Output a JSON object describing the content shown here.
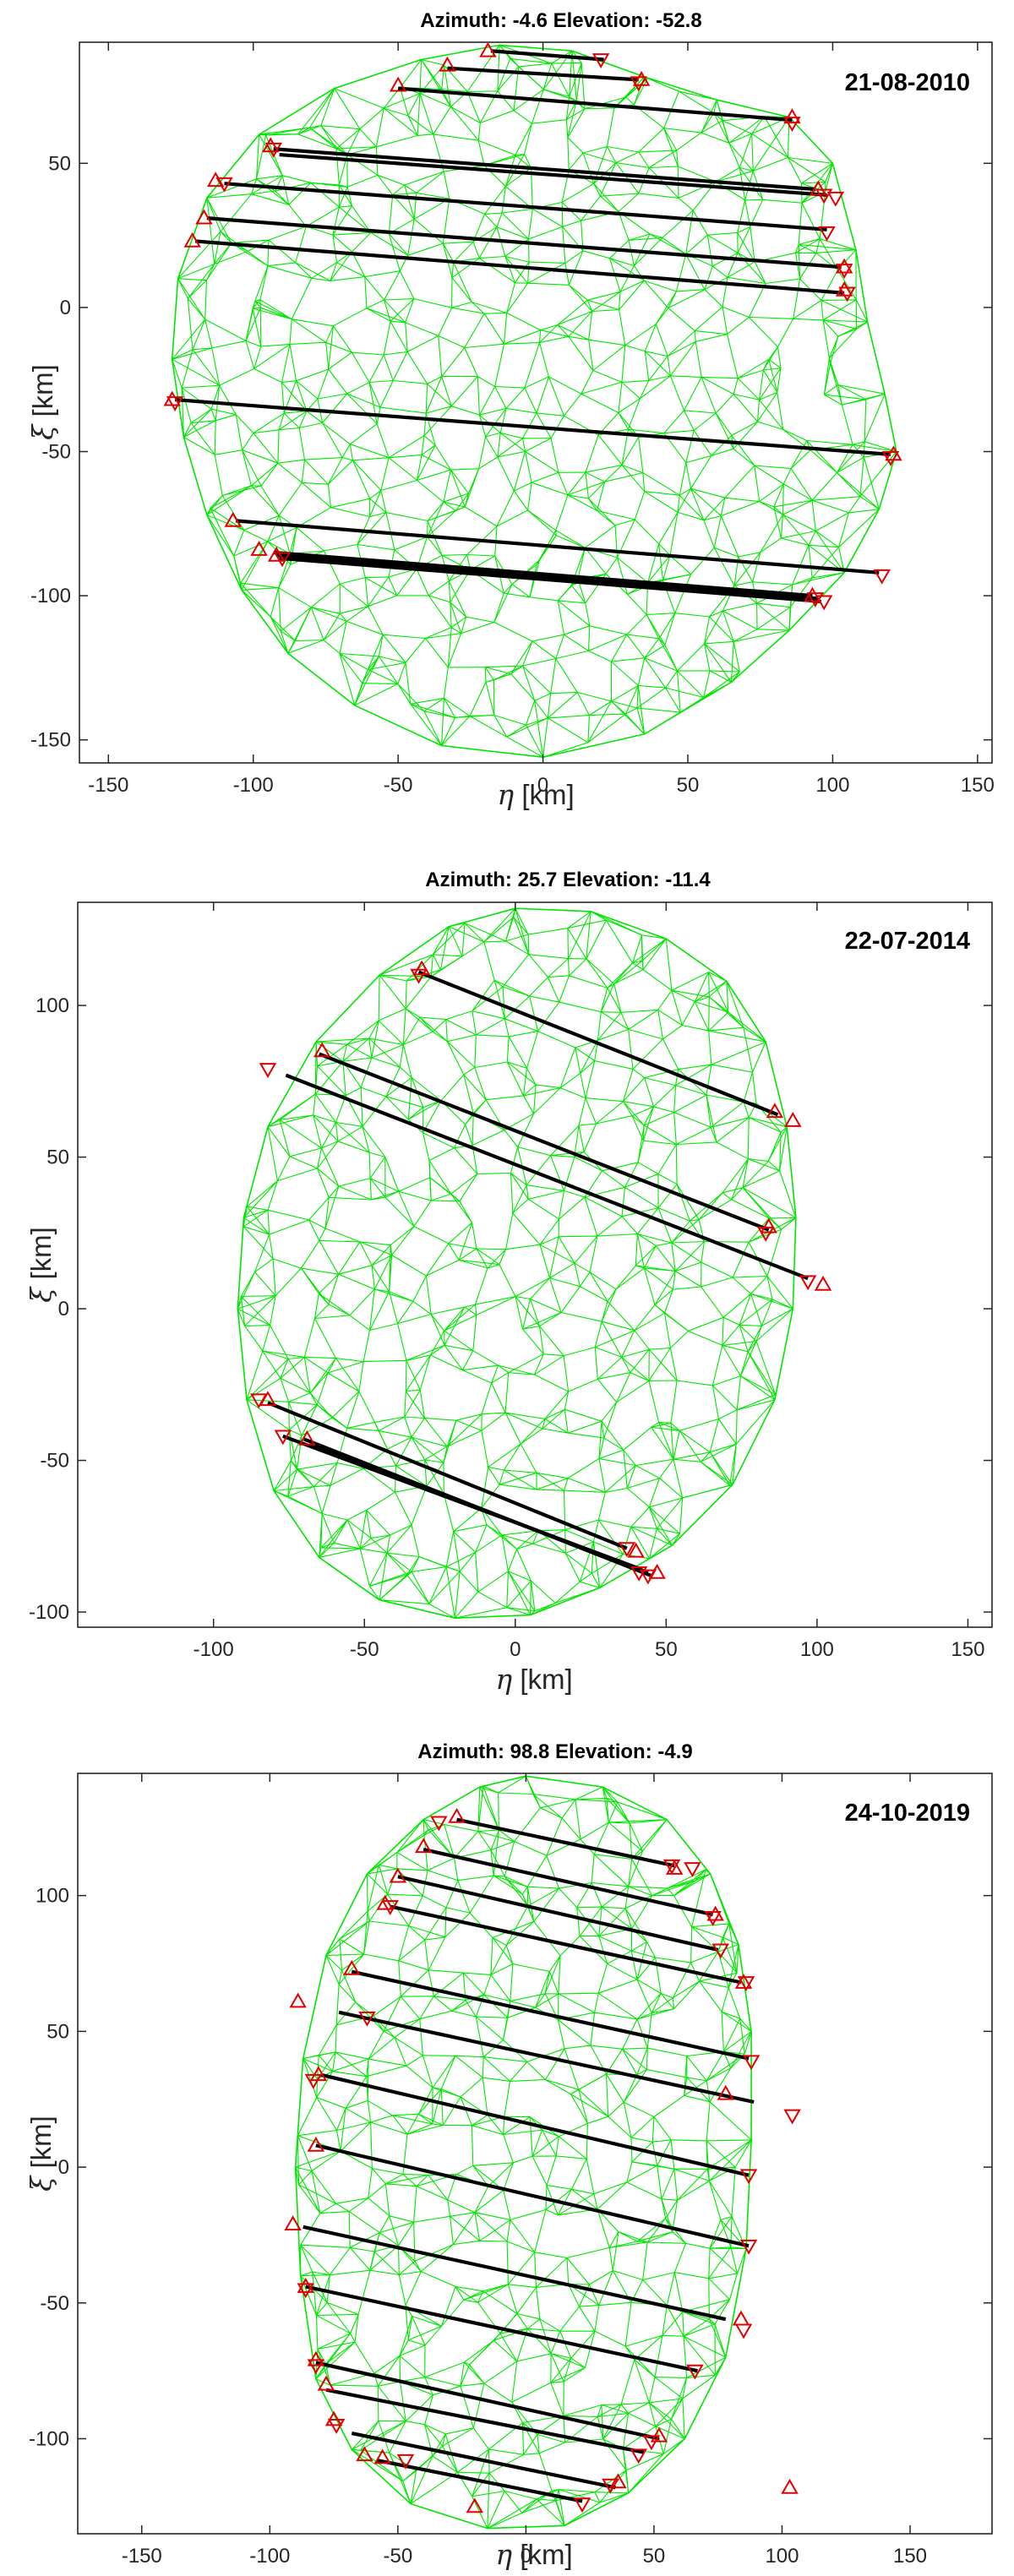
{
  "chart_data": [
    {
      "type": "scatter",
      "title": "Azimuth: -4.6 Elevation: -52.8",
      "annotation": "21-08-2010",
      "xlabel_sym": "η",
      "ylabel_sym": "ξ",
      "unit": "[km]",
      "xlim": [
        -160,
        155
      ],
      "ylim": [
        -158,
        92
      ],
      "xticks": [
        -150,
        -100,
        -50,
        0,
        50,
        100,
        150
      ],
      "yticks": [
        -150,
        -100,
        -50,
        0,
        50
      ],
      "profile": "#00e600",
      "chord_color": "#000000",
      "marker_color": "#e00000",
      "outline": [
        [
          -15,
          91
        ],
        [
          10,
          89
        ],
        [
          35,
          80
        ],
        [
          60,
          72
        ],
        [
          85,
          66
        ],
        [
          100,
          50
        ],
        [
          108,
          20
        ],
        [
          112,
          -5
        ],
        [
          118,
          -30
        ],
        [
          122,
          -50
        ],
        [
          116,
          -70
        ],
        [
          104,
          -92
        ],
        [
          85,
          -112
        ],
        [
          65,
          -130
        ],
        [
          35,
          -148
        ],
        [
          0,
          -156
        ],
        [
          -35,
          -152
        ],
        [
          -65,
          -138
        ],
        [
          -88,
          -120
        ],
        [
          -104,
          -98
        ],
        [
          -116,
          -72
        ],
        [
          -124,
          -45
        ],
        [
          -128,
          -18
        ],
        [
          -126,
          10
        ],
        [
          -116,
          38
        ],
        [
          -98,
          60
        ],
        [
          -72,
          76
        ],
        [
          -42,
          86
        ]
      ],
      "chords": [
        {
          "x1": -18,
          "y1": 89,
          "x2": 21,
          "y2": 86
        },
        {
          "x1": -33,
          "y1": 83,
          "x2": 33,
          "y2": 79
        },
        {
          "x1": -50,
          "y1": 76,
          "x2": 86,
          "y2": 65
        },
        {
          "x1": -93,
          "y1": 55,
          "x2": 94,
          "y2": 41
        },
        {
          "x1": -91,
          "y1": 53,
          "x2": 98,
          "y2": 39
        },
        {
          "x1": -110,
          "y1": 43,
          "x2": 98,
          "y2": 27
        },
        {
          "x1": -116,
          "y1": 31,
          "x2": 103,
          "y2": 14
        },
        {
          "x1": -120,
          "y1": 23,
          "x2": 104,
          "y2": 5
        },
        {
          "x1": -127,
          "y1": -32,
          "x2": 120,
          "y2": -51
        },
        {
          "x1": -106,
          "y1": -74,
          "x2": 116,
          "y2": -92
        },
        {
          "x1": -93,
          "y1": -85,
          "x2": 93,
          "y2": -100
        },
        {
          "x1": -92,
          "y1": -86,
          "x2": 95,
          "y2": -101
        },
        {
          "x1": -91,
          "y1": -87,
          "x2": 96,
          "y2": -102
        }
      ],
      "markers_up": [
        [
          -19,
          89
        ],
        [
          -33,
          84
        ],
        [
          -50,
          77
        ],
        [
          -94,
          56
        ],
        [
          -113,
          44
        ],
        [
          -117,
          31
        ],
        [
          -121,
          23
        ],
        [
          -128,
          -32
        ],
        [
          -107,
          -74
        ],
        [
          -98,
          -84
        ],
        [
          -92,
          -86
        ],
        [
          34,
          79
        ],
        [
          86,
          66
        ],
        [
          95,
          41
        ],
        [
          104,
          14
        ],
        [
          104,
          6
        ],
        [
          121,
          -51
        ],
        [
          93,
          -100
        ]
      ],
      "markers_down": [
        [
          20,
          86
        ],
        [
          33,
          78
        ],
        [
          86,
          64
        ],
        [
          97,
          39
        ],
        [
          101,
          38
        ],
        [
          98,
          26
        ],
        [
          104,
          13
        ],
        [
          105,
          5
        ],
        [
          120,
          -52
        ],
        [
          117,
          -93
        ],
        [
          94,
          -101
        ],
        [
          97,
          -102
        ],
        [
          -93,
          55
        ],
        [
          -110,
          43
        ],
        [
          -127,
          -33
        ],
        [
          -90,
          -87
        ]
      ]
    },
    {
      "type": "scatter",
      "title": "Azimuth: 25.7 Elevation: -11.4",
      "annotation": "22-07-2014",
      "xlabel_sym": "η",
      "ylabel_sym": "ξ",
      "unit": "[km]",
      "xlim": [
        -145,
        158
      ],
      "ylim": [
        -105,
        134
      ],
      "xticks": [
        -100,
        -50,
        0,
        50,
        100,
        150
      ],
      "yticks": [
        -100,
        -50,
        0,
        50,
        100
      ],
      "profile": "#00e600",
      "chord_color": "#000000",
      "marker_color": "#e00000",
      "outline": [
        [
          0,
          132
        ],
        [
          25,
          131
        ],
        [
          50,
          122
        ],
        [
          70,
          108
        ],
        [
          83,
          88
        ],
        [
          90,
          60
        ],
        [
          93,
          30
        ],
        [
          92,
          0
        ],
        [
          86,
          -30
        ],
        [
          72,
          -58
        ],
        [
          52,
          -78
        ],
        [
          28,
          -92
        ],
        [
          5,
          -101
        ],
        [
          -20,
          -102
        ],
        [
          -45,
          -96
        ],
        [
          -65,
          -82
        ],
        [
          -80,
          -60
        ],
        [
          -89,
          -30
        ],
        [
          -92,
          0
        ],
        [
          -90,
          30
        ],
        [
          -82,
          60
        ],
        [
          -66,
          88
        ],
        [
          -45,
          110
        ],
        [
          -22,
          126
        ]
      ],
      "chords": [
        {
          "x1": -32,
          "y1": 111,
          "x2": 87,
          "y2": 64
        },
        {
          "x1": -65,
          "y1": 84,
          "x2": 84,
          "y2": 26
        },
        {
          "x1": -76,
          "y1": 77,
          "x2": 97,
          "y2": 10
        },
        {
          "x1": -82,
          "y1": -31,
          "x2": 37,
          "y2": -79
        },
        {
          "x1": -77,
          "y1": -42,
          "x2": 42,
          "y2": -86
        },
        {
          "x1": -70,
          "y1": -43,
          "x2": 45,
          "y2": -88
        },
        {
          "x1": -67,
          "y1": -45,
          "x2": 44,
          "y2": -87
        }
      ],
      "markers_up": [
        [
          -31,
          112
        ],
        [
          -64,
          85
        ],
        [
          -82,
          -30
        ],
        [
          -69,
          -43
        ],
        [
          86,
          65
        ],
        [
          92,
          62
        ],
        [
          84,
          27
        ],
        [
          102,
          8
        ],
        [
          40,
          -80
        ],
        [
          47,
          -87
        ]
      ],
      "markers_down": [
        [
          -32,
          110
        ],
        [
          -82,
          79
        ],
        [
          -85,
          -30
        ],
        [
          -77,
          -42
        ],
        [
          83,
          25
        ],
        [
          97,
          9
        ],
        [
          37,
          -79
        ],
        [
          44,
          -88
        ],
        [
          41,
          -87
        ]
      ]
    },
    {
      "type": "scatter",
      "title": "Azimuth: 98.8 Elevation: -4.9",
      "annotation": "24-10-2019",
      "xlabel_sym": "η",
      "ylabel_sym": "ξ",
      "unit": "[km]",
      "xlim": [
        -175,
        182
      ],
      "ylim": [
        -135,
        145
      ],
      "xticks": [
        -150,
        -100,
        -50,
        0,
        50,
        100,
        150
      ],
      "yticks": [
        -100,
        -50,
        0,
        50,
        100
      ],
      "profile": "#00e600",
      "chord_color": "#000000",
      "marker_color": "#e00000",
      "outline": [
        [
          0,
          144
        ],
        [
          30,
          140
        ],
        [
          55,
          128
        ],
        [
          72,
          108
        ],
        [
          83,
          82
        ],
        [
          88,
          50
        ],
        [
          88,
          10
        ],
        [
          86,
          -30
        ],
        [
          78,
          -70
        ],
        [
          62,
          -100
        ],
        [
          40,
          -120
        ],
        [
          15,
          -132
        ],
        [
          -15,
          -133
        ],
        [
          -45,
          -124
        ],
        [
          -68,
          -104
        ],
        [
          -82,
          -78
        ],
        [
          -88,
          -40
        ],
        [
          -90,
          0
        ],
        [
          -87,
          40
        ],
        [
          -78,
          78
        ],
        [
          -62,
          108
        ],
        [
          -40,
          128
        ],
        [
          -18,
          140
        ]
      ],
      "chords": [
        {
          "x1": -27,
          "y1": 128,
          "x2": 58,
          "y2": 111
        },
        {
          "x1": -40,
          "y1": 117,
          "x2": 73,
          "y2": 93
        },
        {
          "x1": -50,
          "y1": 107,
          "x2": 75,
          "y2": 80
        },
        {
          "x1": -53,
          "y1": 96,
          "x2": 84,
          "y2": 68
        },
        {
          "x1": -68,
          "y1": 72,
          "x2": 87,
          "y2": 40
        },
        {
          "x1": -73,
          "y1": 57,
          "x2": 89,
          "y2": 24
        },
        {
          "x1": -80,
          "y1": 34,
          "x2": 87,
          "y2": -3
        },
        {
          "x1": -82,
          "y1": 8,
          "x2": 87,
          "y2": -29
        },
        {
          "x1": -87,
          "y1": -22,
          "x2": 78,
          "y2": -56
        },
        {
          "x1": -86,
          "y1": -44,
          "x2": 67,
          "y2": -75
        },
        {
          "x1": -82,
          "y1": -72,
          "x2": 52,
          "y2": -100
        },
        {
          "x1": -78,
          "y1": -82,
          "x2": 46,
          "y2": -105
        },
        {
          "x1": -68,
          "y1": -98,
          "x2": 35,
          "y2": -118
        },
        {
          "x1": -58,
          "y1": -108,
          "x2": 22,
          "y2": -123
        }
      ],
      "markers_up": [
        [
          -27,
          129
        ],
        [
          -40,
          118
        ],
        [
          -50,
          107
        ],
        [
          -55,
          97
        ],
        [
          -68,
          73
        ],
        [
          -89,
          61
        ],
        [
          -81,
          34
        ],
        [
          -82,
          8
        ],
        [
          -91,
          -21
        ],
        [
          -86,
          -44
        ],
        [
          -82,
          -71
        ],
        [
          -78,
          -80
        ],
        [
          -75,
          -93
        ],
        [
          -63,
          -106
        ],
        [
          -56,
          -107
        ],
        [
          -20,
          -125
        ],
        [
          103,
          -118
        ],
        [
          58,
          110
        ],
        [
          74,
          93
        ],
        [
          85,
          68
        ],
        [
          78,
          27
        ],
        [
          84,
          -56
        ],
        [
          52,
          -99
        ],
        [
          36,
          -116
        ]
      ],
      "markers_down": [
        [
          -34,
          127
        ],
        [
          -53,
          96
        ],
        [
          -62,
          55
        ],
        [
          -83,
          32
        ],
        [
          -86,
          -45
        ],
        [
          -82,
          -73
        ],
        [
          -74,
          -95
        ],
        [
          57,
          111
        ],
        [
          65,
          110
        ],
        [
          73,
          92
        ],
        [
          76,
          80
        ],
        [
          86,
          68
        ],
        [
          88,
          39
        ],
        [
          104,
          19
        ],
        [
          87,
          -3
        ],
        [
          87,
          -29
        ],
        [
          85,
          -60
        ],
        [
          66,
          -75
        ],
        [
          49,
          -101
        ],
        [
          44,
          -106
        ],
        [
          33,
          -117
        ],
        [
          22,
          -124
        ],
        [
          -47,
          -108
        ]
      ]
    }
  ]
}
